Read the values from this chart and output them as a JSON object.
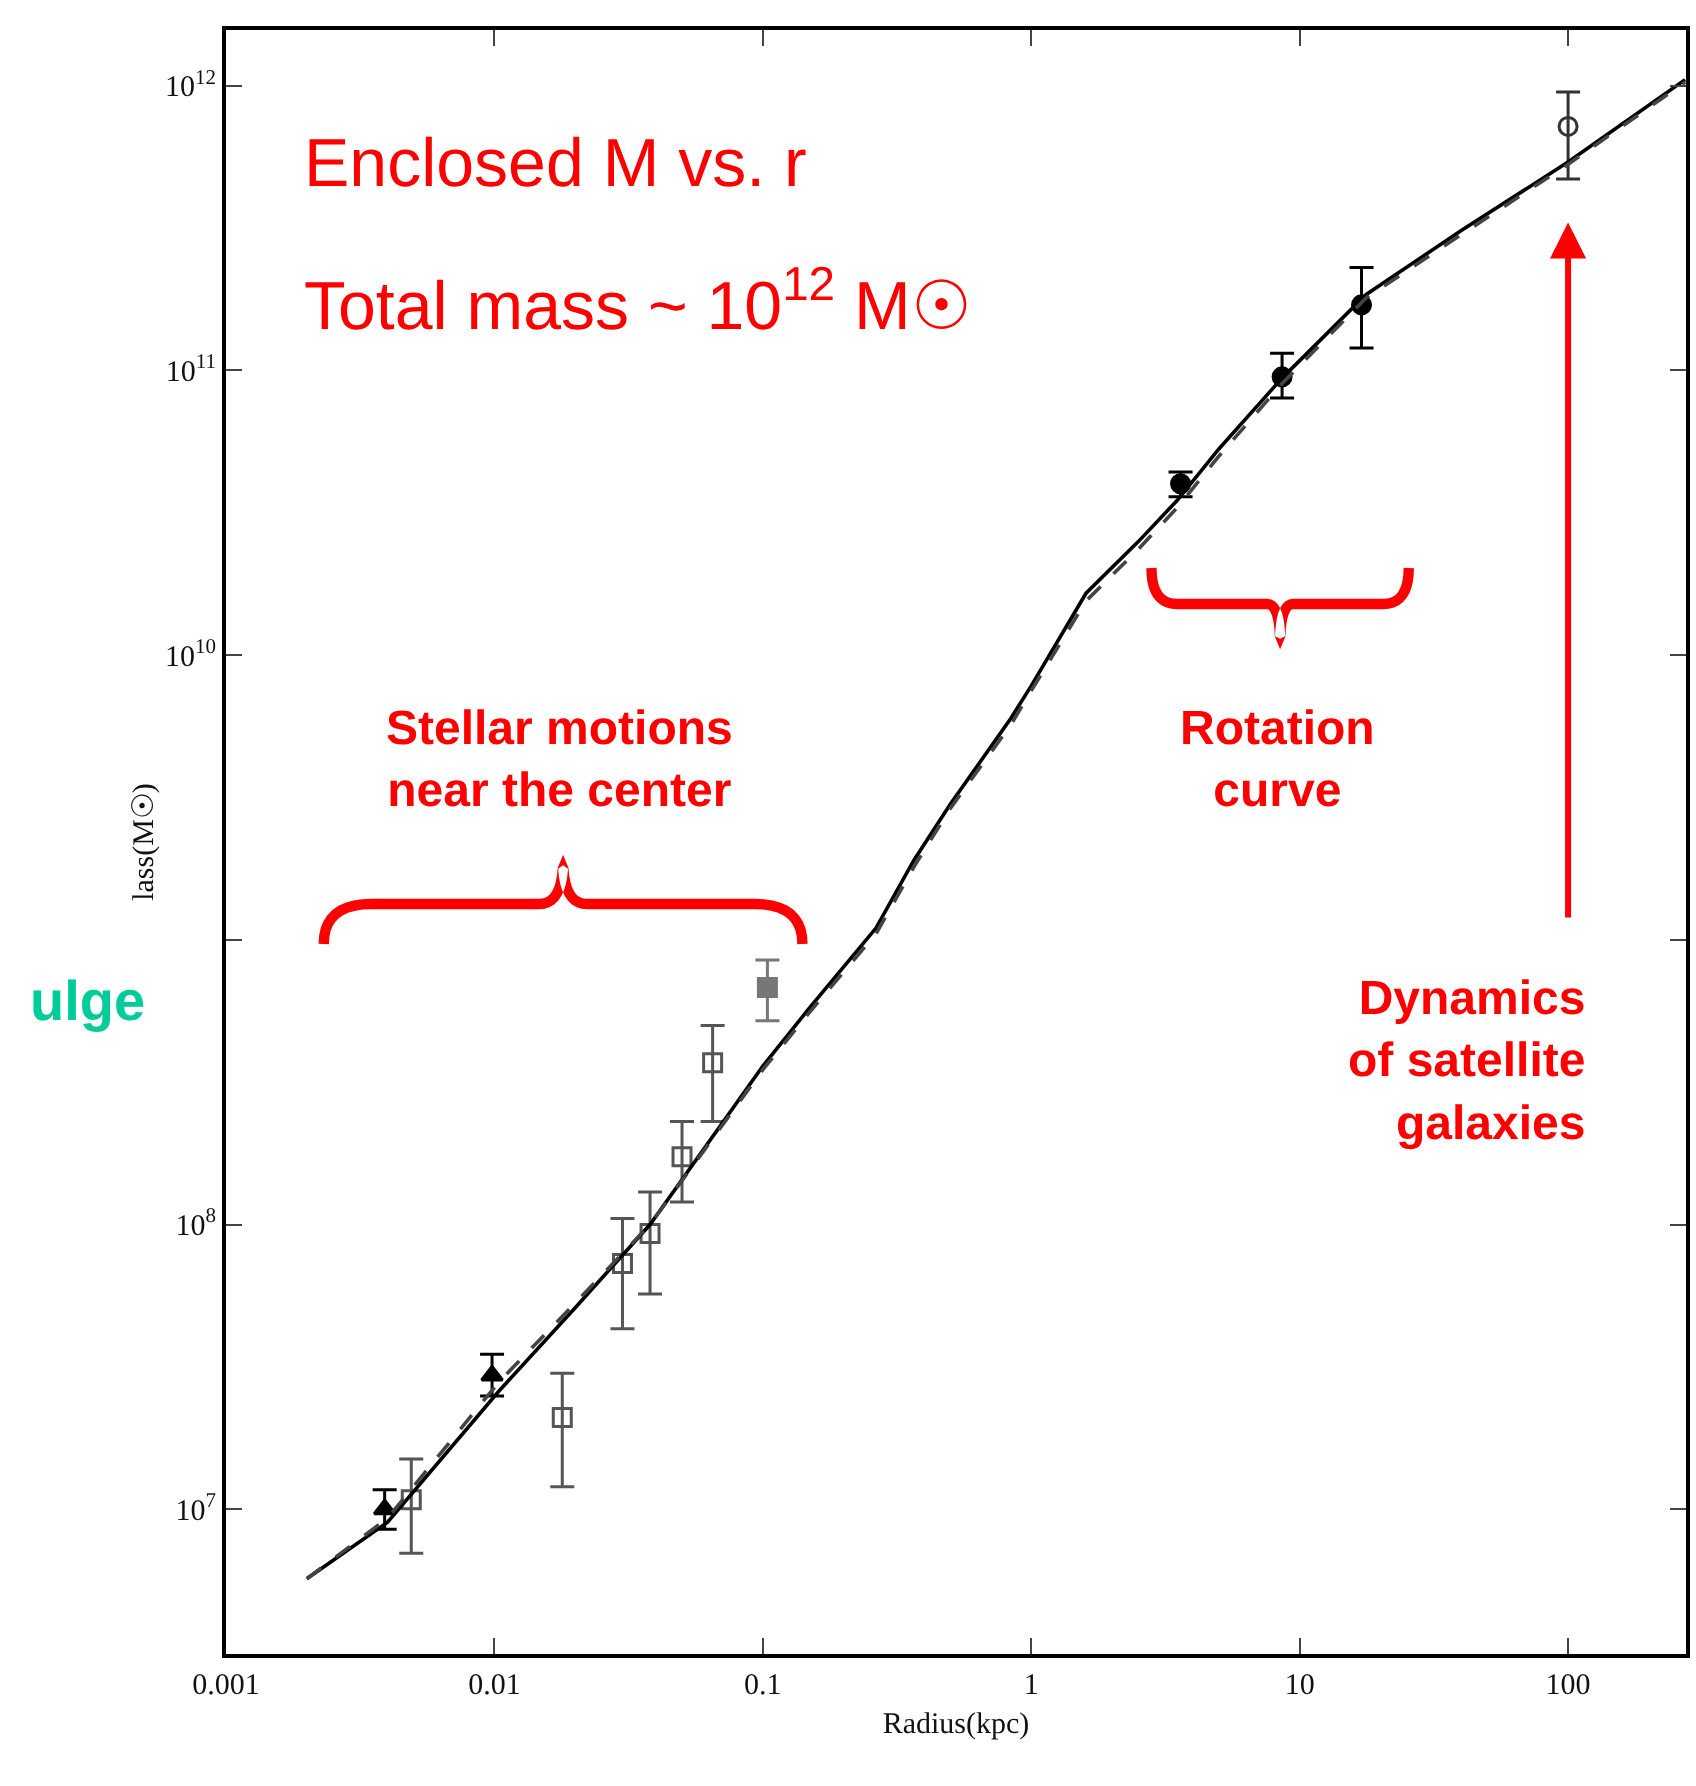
{
  "chart_data": {
    "type": "scatter",
    "xlabel": "Radius(kpc)",
    "ylabel": "lass(M☉)",
    "log": "xy",
    "xlim": [
      0.001,
      275
    ],
    "ylim": [
      3100000,
      1570000000000
    ],
    "xticks": [
      0.001,
      0.01,
      0.1,
      1,
      10,
      100
    ],
    "yticks": [
      {
        "value": 10000000,
        "label": "10$^{7}$"
      },
      {
        "value": 100000000,
        "label": "10$^{8}$"
      },
      {
        "value": 1000000000,
        "label": null
      },
      {
        "value": 10000000000,
        "label": "10$^{10}$"
      },
      {
        "value": 100000000000,
        "label": "10$^{11}$"
      },
      {
        "value": 1000000000000,
        "label": "10$^{12}$"
      }
    ],
    "series": [
      {
        "marker": "triangle",
        "color": "#000000",
        "x": [
          0.0039,
          0.0098
        ],
        "values": [
          10000000,
          29500000
        ],
        "errors": [
          [
            8500000,
            11700000
          ],
          [
            25000000,
            35000000
          ]
        ]
      },
      {
        "marker": "square",
        "color": "#555555",
        "x": [
          0.0049,
          0.0179,
          0.03,
          0.038,
          0.05,
          0.065
        ],
        "values": [
          10800000,
          21000000,
          73000000,
          93000000,
          173000000,
          370000000
        ],
        "errors": [
          [
            7000000,
            15000000
          ],
          [
            12000000,
            30000000
          ],
          [
            43000000,
            105000000
          ],
          [
            57000000,
            130000000
          ],
          [
            120000000,
            230000000
          ],
          [
            230000000,
            500000000
          ]
        ]
      },
      {
        "marker": "square",
        "color": "#777777",
        "x": [
          0.104
        ],
        "values": [
          680000000
        ],
        "errors": [
          [
            520000000,
            850000000
          ]
        ]
      },
      {
        "marker": "circle",
        "color": "#000000",
        "x": [
          3.6,
          8.6,
          17
        ],
        "values": [
          40000000000,
          95000000000,
          170000000000
        ],
        "errors": [
          [
            36000000000,
            44000000000
          ],
          [
            80000000000,
            115000000000
          ],
          [
            120000000000,
            230000000000
          ]
        ]
      },
      {
        "marker": "circle",
        "color": "#333333",
        "x": [
          100
        ],
        "values": [
          720000000000
        ],
        "errors": [
          [
            470000000000,
            950000000000
          ]
        ]
      },
      {
        "type": "line",
        "line_style": "solid",
        "color": "#000000",
        "x": [
          0.002,
          0.004,
          0.0104,
          0.02,
          0.038,
          0.1,
          0.15,
          0.264,
          0.365,
          0.5,
          0.84,
          1.0,
          1.6,
          2.5,
          3.5,
          5,
          8.6,
          17.7,
          40,
          100,
          273
        ],
        "values": [
          5700000,
          9000000,
          26000000,
          51000000,
          100000000,
          360000000,
          580000000,
          1100000000,
          1900000000,
          3000000000,
          6000000000,
          7800000000,
          16500000000,
          25000000000,
          35000000000,
          53000000000,
          94000000000,
          185000000000,
          310000000000,
          540000000000,
          1050000000000
        ]
      },
      {
        "type": "line",
        "line_style": "dashed",
        "color": "#444444",
        "x": [
          0.002,
          0.004,
          0.0104,
          0.02,
          0.038,
          0.1,
          0.15,
          0.264,
          0.365,
          0.5,
          0.84,
          1.0,
          1.6,
          2.5,
          3.5,
          5,
          8.6,
          17.7,
          40,
          100,
          273
        ],
        "values": [
          5700000,
          9300000,
          28000000,
          53000000,
          100000000,
          350000000,
          560000000,
          1050000000,
          1800000000,
          2900000000,
          5700000000,
          7500000000,
          15500000000,
          23500000000,
          33000000000,
          50000000000,
          90000000000,
          180000000000,
          300000000000,
          530000000000,
          1030000000000
        ]
      }
    ],
    "annotations": [
      "Enclosed M vs. r",
      "Total mass ~ 10$^{12}$ M☉",
      {
        "text": "Dynamics\nof satellite\ngalaxies",
        "x": 100,
        "y": 720000000000
      },
      "ulge",
      "Stellar motions\nnear the center",
      "Rotation\ncurve"
    ]
  }
}
